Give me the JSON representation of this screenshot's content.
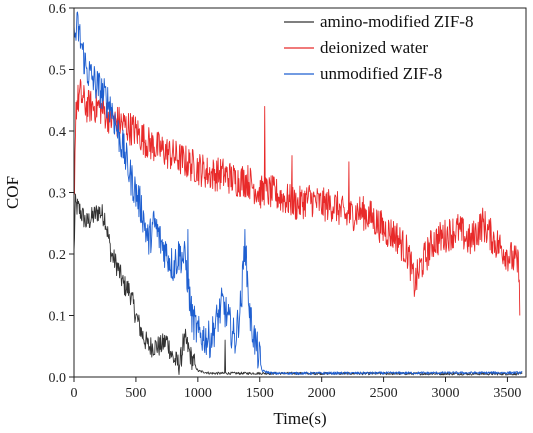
{
  "chart_data": {
    "type": "line",
    "xlabel": "Time(s)",
    "ylabel": "COF",
    "xlim": [
      0,
      3650
    ],
    "ylim": [
      0,
      0.6
    ],
    "x_ticks": [
      "0",
      "500",
      "1000",
      "1500",
      "2000",
      "2500",
      "3000",
      "3500"
    ],
    "y_ticks": [
      "0.0",
      "0.1",
      "0.2",
      "0.3",
      "0.4",
      "0.5",
      "0.6"
    ],
    "grid": false,
    "legend_position": "top-right",
    "series": [
      {
        "name": "amino-modified ZIF-8",
        "color": "#333333",
        "noise": 0.018,
        "points": [
          [
            0,
            0.2
          ],
          [
            10,
            0.28
          ],
          [
            50,
            0.27
          ],
          [
            100,
            0.25
          ],
          [
            200,
            0.27
          ],
          [
            250,
            0.26
          ],
          [
            300,
            0.2
          ],
          [
            350,
            0.18
          ],
          [
            400,
            0.15
          ],
          [
            450,
            0.14
          ],
          [
            500,
            0.1
          ],
          [
            550,
            0.07
          ],
          [
            600,
            0.05
          ],
          [
            650,
            0.05
          ],
          [
            700,
            0.05
          ],
          [
            750,
            0.06
          ],
          [
            800,
            0.03
          ],
          [
            850,
            0.02
          ],
          [
            900,
            0.06
          ],
          [
            950,
            0.03
          ],
          [
            1000,
            0.01
          ],
          [
            1100,
            0.006
          ],
          [
            1500,
            0.006
          ],
          [
            3620,
            0.005
          ]
        ]
      },
      {
        "name": "deionized water",
        "color": "#e82a2a",
        "noise": 0.028,
        "points": [
          [
            0,
            0.28
          ],
          [
            15,
            0.44
          ],
          [
            50,
            0.46
          ],
          [
            100,
            0.44
          ],
          [
            200,
            0.44
          ],
          [
            300,
            0.42
          ],
          [
            400,
            0.41
          ],
          [
            500,
            0.4
          ],
          [
            600,
            0.38
          ],
          [
            700,
            0.37
          ],
          [
            800,
            0.36
          ],
          [
            900,
            0.35
          ],
          [
            1000,
            0.34
          ],
          [
            1100,
            0.33
          ],
          [
            1200,
            0.33
          ],
          [
            1300,
            0.32
          ],
          [
            1400,
            0.32
          ],
          [
            1500,
            0.3
          ],
          [
            1600,
            0.3
          ],
          [
            1700,
            0.29
          ],
          [
            1800,
            0.28
          ],
          [
            1900,
            0.29
          ],
          [
            2000,
            0.28
          ],
          [
            2100,
            0.28
          ],
          [
            2200,
            0.26
          ],
          [
            2300,
            0.27
          ],
          [
            2400,
            0.26
          ],
          [
            2500,
            0.24
          ],
          [
            2600,
            0.23
          ],
          [
            2700,
            0.2
          ],
          [
            2750,
            0.15
          ],
          [
            2800,
            0.18
          ],
          [
            2900,
            0.22
          ],
          [
            3000,
            0.23
          ],
          [
            3100,
            0.24
          ],
          [
            3200,
            0.22
          ],
          [
            3300,
            0.25
          ],
          [
            3400,
            0.22
          ],
          [
            3500,
            0.2
          ],
          [
            3600,
            0.18
          ]
        ]
      },
      {
        "name": "unmodified ZIF-8",
        "color": "#1f5fd0",
        "noise": 0.03,
        "points": [
          [
            0,
            0.55
          ],
          [
            30,
            0.57
          ],
          [
            100,
            0.5
          ],
          [
            200,
            0.47
          ],
          [
            300,
            0.44
          ],
          [
            350,
            0.4
          ],
          [
            400,
            0.37
          ],
          [
            450,
            0.33
          ],
          [
            500,
            0.3
          ],
          [
            550,
            0.27
          ],
          [
            600,
            0.22
          ],
          [
            650,
            0.25
          ],
          [
            700,
            0.22
          ],
          [
            750,
            0.2
          ],
          [
            800,
            0.18
          ],
          [
            850,
            0.2
          ],
          [
            900,
            0.19
          ],
          [
            950,
            0.1
          ],
          [
            1000,
            0.07
          ],
          [
            1100,
            0.06
          ],
          [
            1150,
            0.09
          ],
          [
            1200,
            0.12
          ],
          [
            1250,
            0.09
          ],
          [
            1300,
            0.06
          ],
          [
            1350,
            0.12
          ],
          [
            1380,
            0.22
          ],
          [
            1420,
            0.1
          ],
          [
            1460,
            0.06
          ],
          [
            1520,
            0.01
          ],
          [
            1600,
            0.006
          ],
          [
            3620,
            0.007
          ]
        ]
      }
    ],
    "spikes": [
      {
        "series": 0,
        "x": 880,
        "y": 0.07
      },
      {
        "series": 0,
        "x": 1220,
        "y": 0.06
      },
      {
        "series": 0,
        "x": 1530,
        "y": 0.03
      },
      {
        "series": 0,
        "x": 1790,
        "y": 0.02
      },
      {
        "series": 0,
        "x": 2010,
        "y": 0.015
      },
      {
        "series": 1,
        "x": 1540,
        "y": 0.44
      },
      {
        "series": 1,
        "x": 1760,
        "y": 0.36
      },
      {
        "series": 1,
        "x": 2220,
        "y": 0.35
      },
      {
        "series": 1,
        "x": 3250,
        "y": 0.31
      },
      {
        "series": 1,
        "x": 3600,
        "y": 0.1
      },
      {
        "series": 2,
        "x": 1380,
        "y": 0.24
      },
      {
        "series": 2,
        "x": 920,
        "y": 0.24
      }
    ]
  }
}
